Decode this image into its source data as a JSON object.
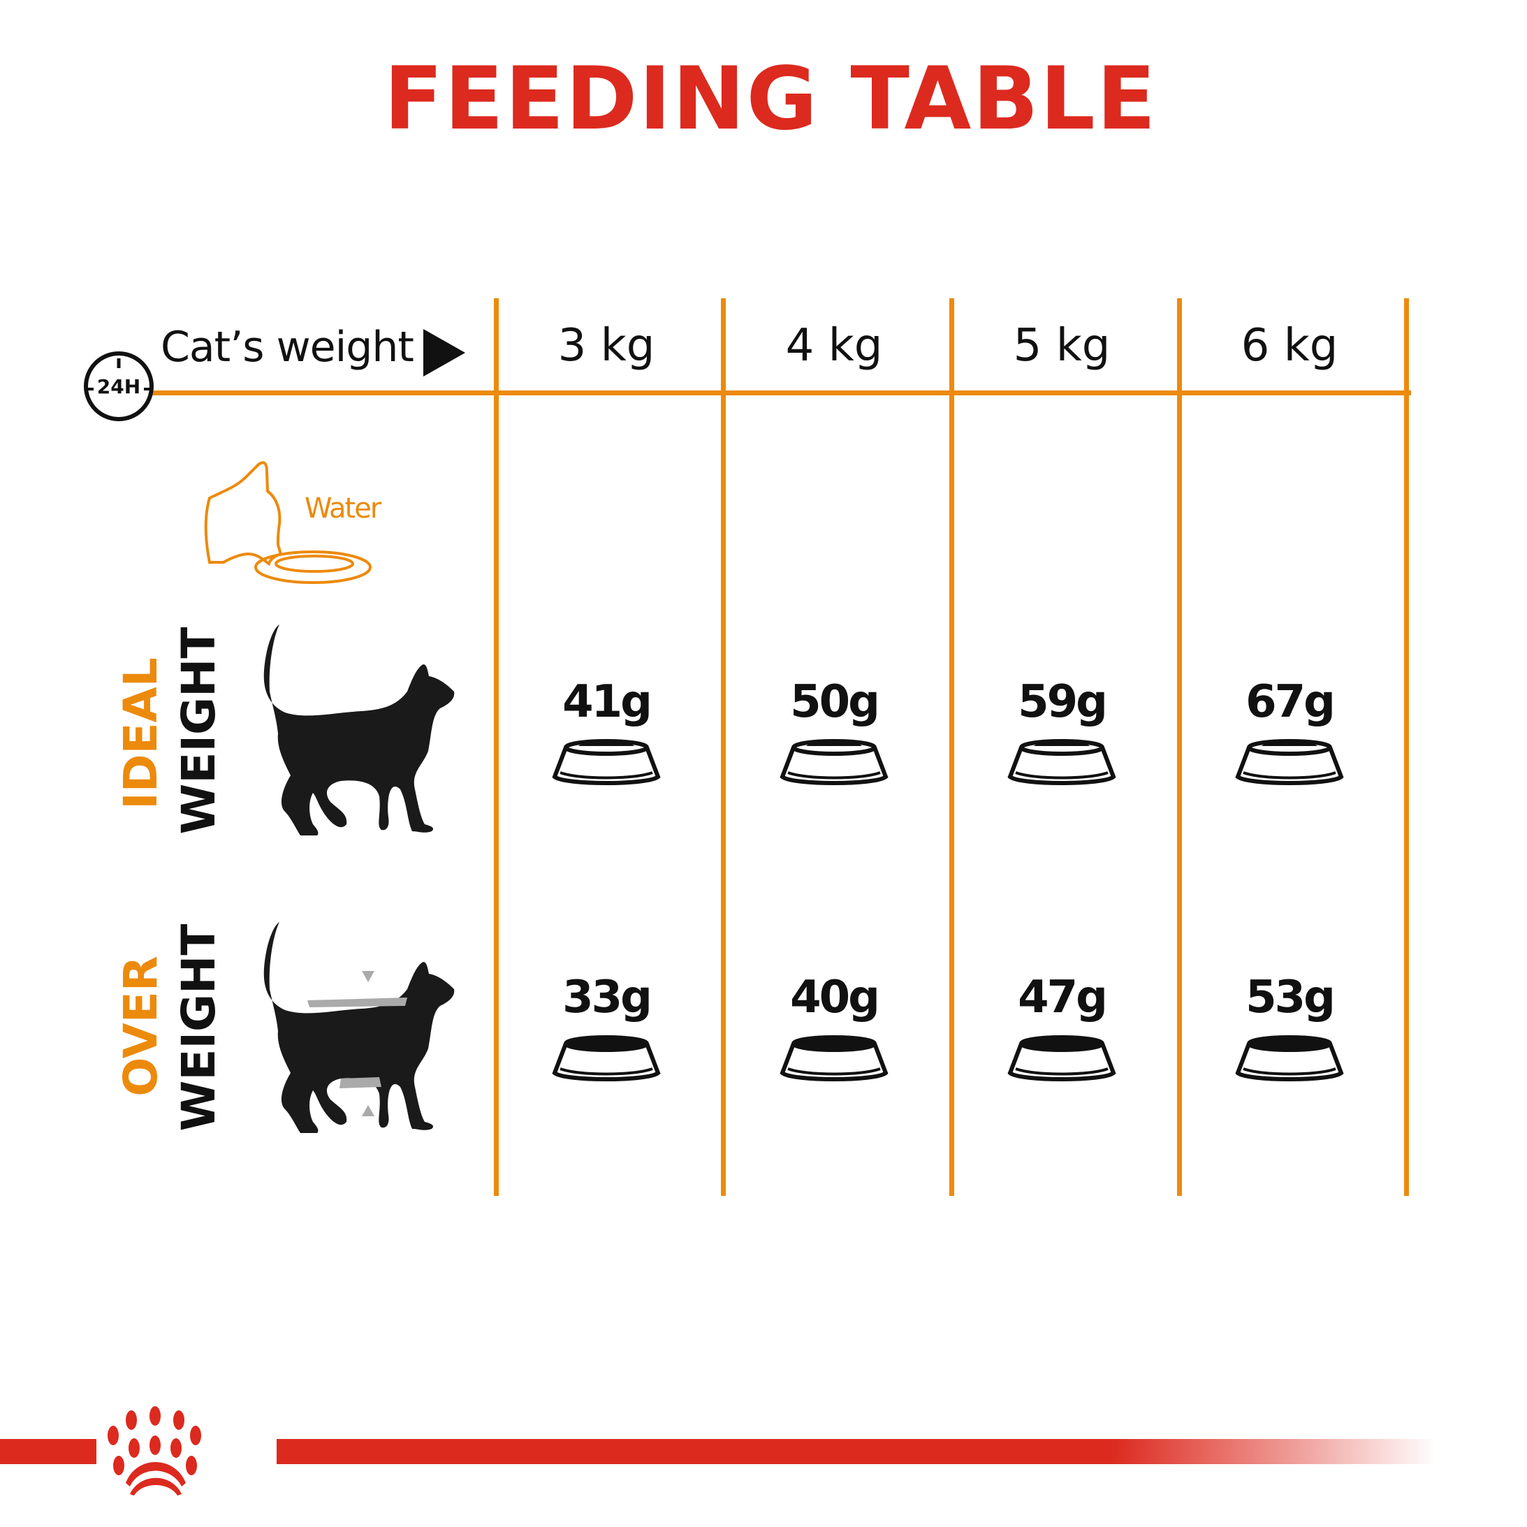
{
  "title": "FEEDING TABLE",
  "header": {
    "clock_label": "24H",
    "row_label": "Cat’s weight",
    "weights": [
      "3 kg",
      "4 kg",
      "5 kg",
      "6 kg"
    ]
  },
  "water_label": "Water",
  "rows": [
    {
      "label_top": "IDEAL",
      "label_bottom": "WEIGHT",
      "amounts": [
        "41g",
        "50g",
        "59g",
        "67g"
      ]
    },
    {
      "label_top": "OVER",
      "label_bottom": "WEIGHT",
      "amounts": [
        "33g",
        "40g",
        "47g",
        "53g"
      ]
    }
  ],
  "colors": {
    "title": "#dc2a1f",
    "grid": "#ec8a0c",
    "row_label_accent": "#ec8a0c",
    "brand_bar": "#dc2a1f"
  },
  "logo": "Royal Canin crown"
}
